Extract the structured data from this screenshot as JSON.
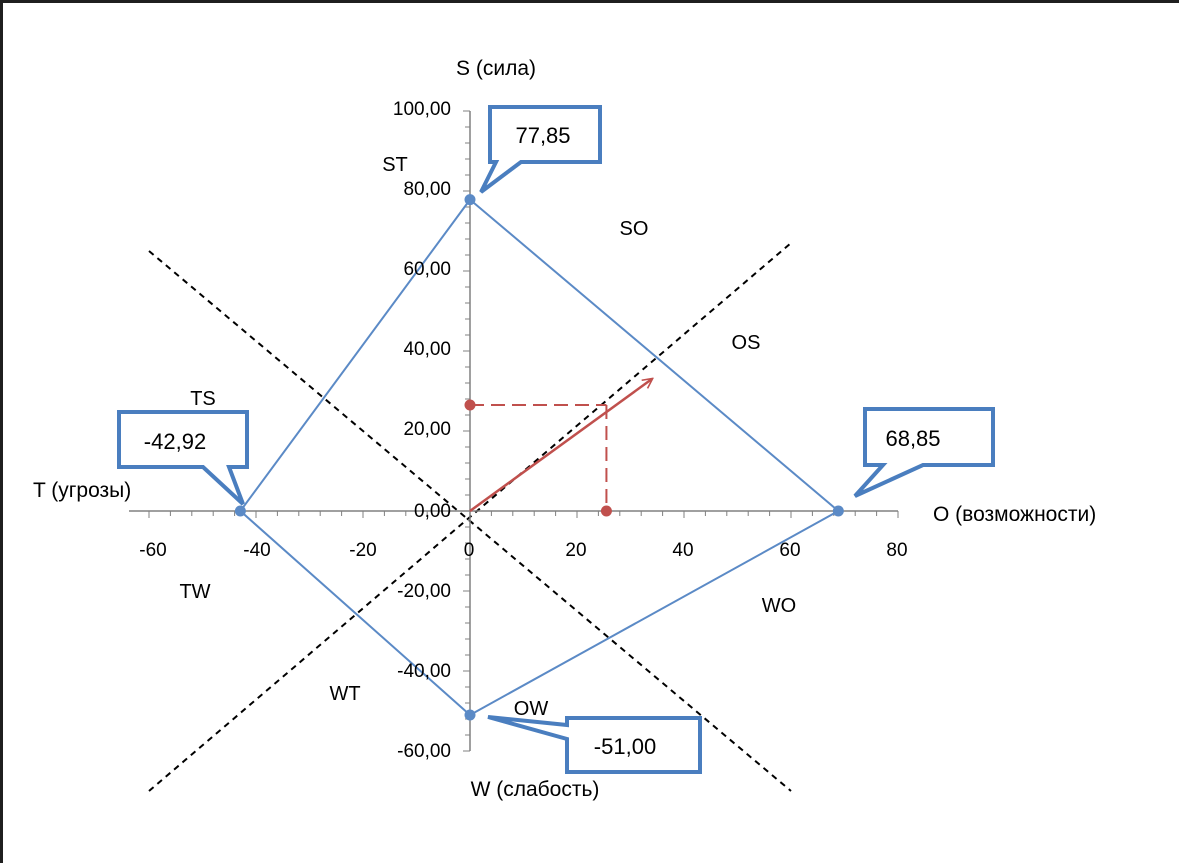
{
  "chart_data": {
    "type": "scatter",
    "axis_titles": {
      "top": "S (сила)",
      "bottom": "W (слабость)",
      "left": "T (угрозы)",
      "right": "O (возможности)"
    },
    "x_ticks": [
      "-60",
      "-40",
      "-20",
      "0",
      "20",
      "40",
      "60",
      "80"
    ],
    "y_ticks": [
      "100,00",
      "80,00",
      "60,00",
      "40,00",
      "20,00",
      "0,00",
      "-20,00",
      "-40,00",
      "-60,00"
    ],
    "xlim": [
      -60,
      80
    ],
    "ylim": [
      -60,
      100
    ],
    "zones": [
      "ST",
      "SO",
      "OS",
      "TS",
      "TW",
      "WO",
      "WT",
      "OW"
    ],
    "polygon": {
      "points": [
        {
          "x": 0,
          "y": 77.85,
          "label": "77,85"
        },
        {
          "x": 68.85,
          "y": 0,
          "label": "68,85"
        },
        {
          "x": 0,
          "y": -51.0,
          "label": "-51,00"
        },
        {
          "x": -42.92,
          "y": 0,
          "label": "-42,92"
        }
      ],
      "color": "#5b8ac6"
    },
    "diagonals": [
      {
        "from": {
          "x": -60,
          "y": 65
        },
        "to": {
          "x": 60,
          "y": -70
        }
      },
      {
        "from": {
          "x": -60,
          "y": -70
        },
        "to": {
          "x": 60,
          "y": 67
        }
      }
    ],
    "resultant": {
      "x": 25.5,
      "y": 26.5,
      "arrow_to": {
        "x": 34,
        "y": 33
      },
      "color": "#c0504d"
    },
    "grid": false
  }
}
